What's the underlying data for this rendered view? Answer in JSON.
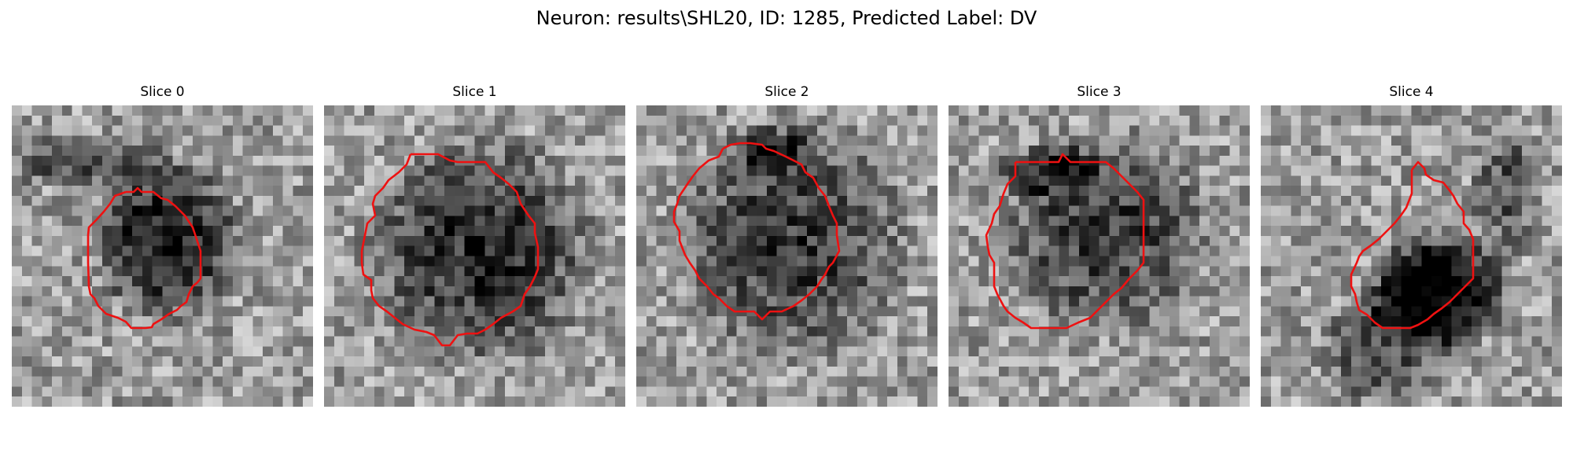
{
  "figure": {
    "title": "Neuron: results\\SHL20, ID: 1285, Predicted Label: DV"
  },
  "slices": [
    {
      "title": "Slice 0"
    },
    {
      "title": "Slice 1"
    },
    {
      "title": "Slice 2"
    },
    {
      "title": "Slice 3"
    },
    {
      "title": "Slice 4"
    }
  ],
  "colors": {
    "contour": "#ee1111",
    "background": "#ffffff"
  },
  "image": {
    "grid": 30,
    "colormap": "gray"
  }
}
